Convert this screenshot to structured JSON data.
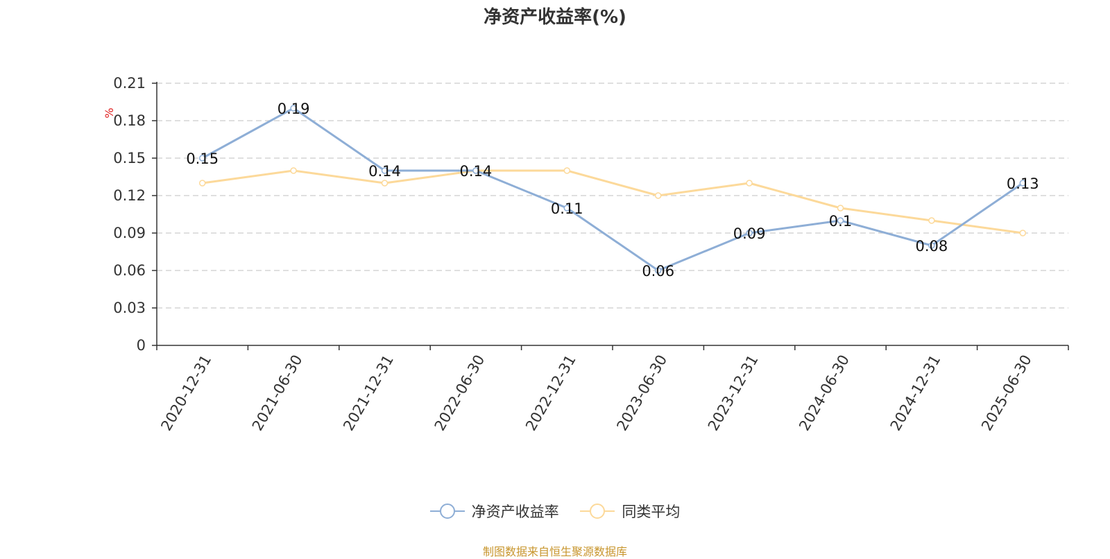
{
  "chart_data": {
    "type": "line",
    "title": "净资产收益率(%)",
    "ylabel": "%",
    "ylim": [
      0,
      0.21
    ],
    "yticks": [
      "0",
      "0.03",
      "0.06",
      "0.09",
      "0.12",
      "0.15",
      "0.18",
      "0.21"
    ],
    "categories": [
      "2020-12-31",
      "2021-06-30",
      "2021-12-31",
      "2022-06-30",
      "2022-12-31",
      "2023-06-30",
      "2023-12-31",
      "2024-06-30",
      "2024-12-31",
      "2025-06-30"
    ],
    "grid": true,
    "legend_position": "bottom",
    "series": [
      {
        "name": "净资产收益率",
        "values": [
          0.15,
          0.19,
          0.14,
          0.14,
          0.11,
          0.06,
          0.09,
          0.1,
          0.08,
          0.13
        ],
        "labels": [
          "0.15",
          "0.19",
          "0.14",
          "0.14",
          "0.11",
          "0.06",
          "0.09",
          "0.1",
          "0.08",
          "0.13"
        ],
        "color": "#8eaed6"
      },
      {
        "name": "同类平均",
        "values": [
          0.13,
          0.14,
          0.13,
          0.14,
          0.14,
          0.12,
          0.13,
          0.11,
          0.1,
          0.09
        ],
        "color": "#fcd99a"
      }
    ]
  },
  "source_text": "制图数据来自恒生聚源数据库",
  "colors": {
    "axis": "#333333",
    "grid": "#cccccc",
    "ylabel": "#e02020",
    "source": "#c8962e"
  }
}
